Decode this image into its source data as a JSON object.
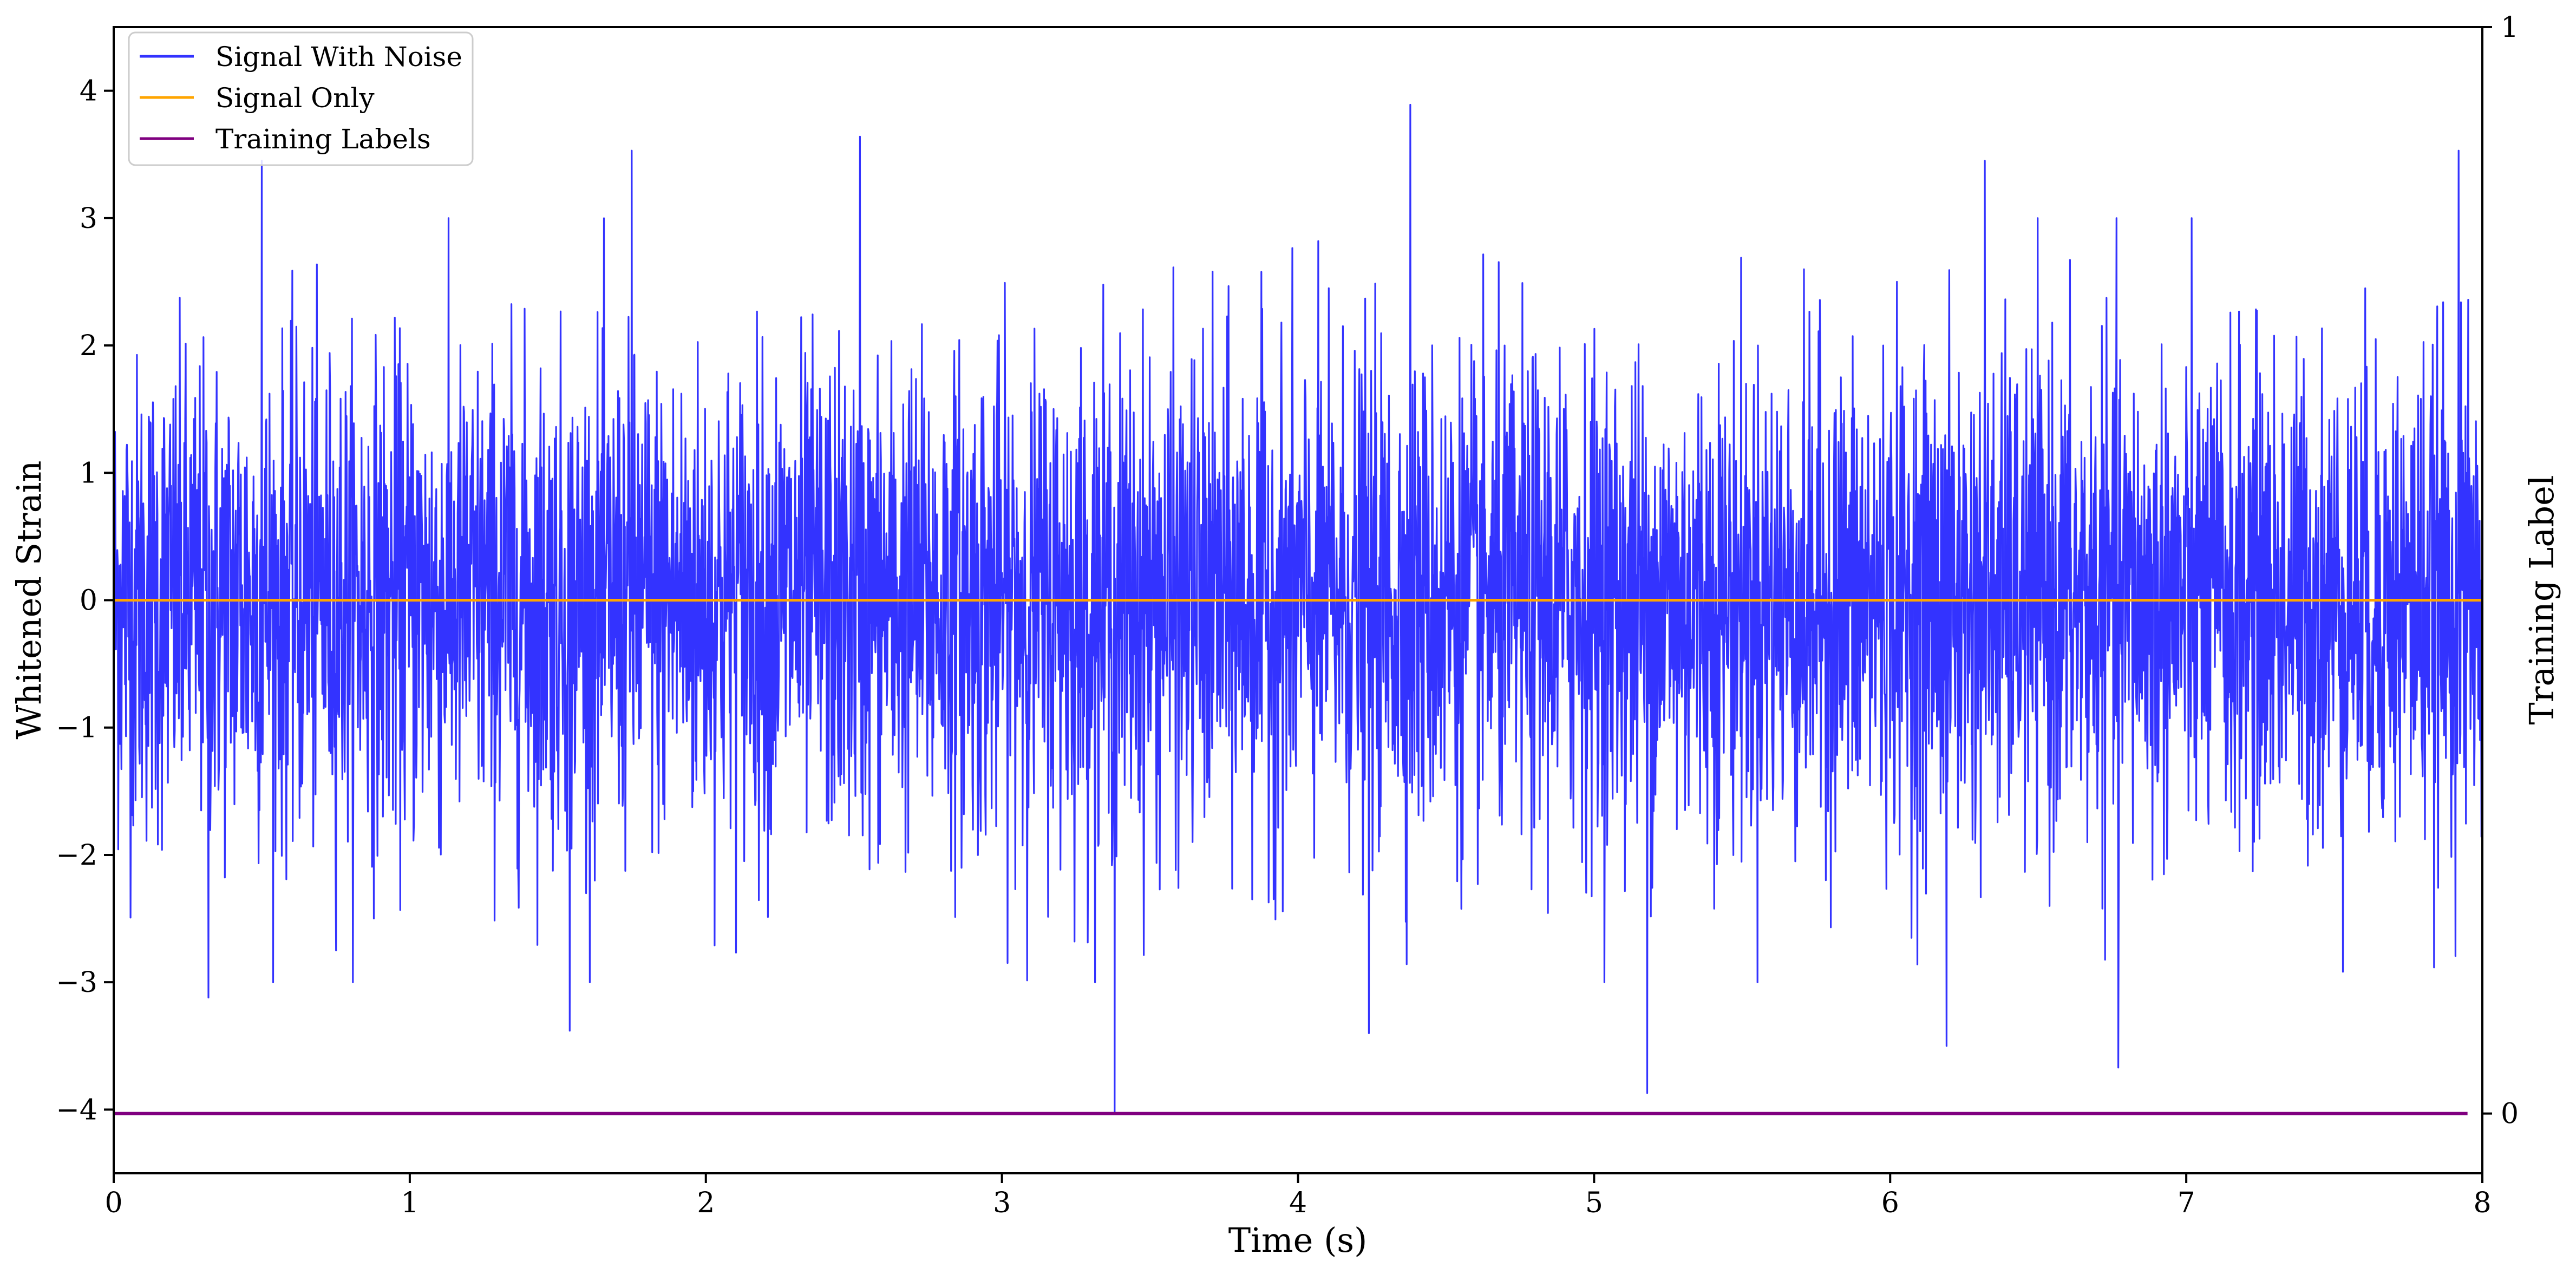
{
  "chart_data": {
    "type": "line",
    "title": "",
    "xlabel": "Time (s)",
    "ylabel": "Whitened Strain",
    "y2label": "Training Label",
    "xlim": [
      0,
      8
    ],
    "ylim": [
      -4.5,
      4.5
    ],
    "y2lim": [
      -0.055,
      1.0
    ],
    "xticks": [
      0,
      1,
      2,
      3,
      4,
      5,
      6,
      7,
      8
    ],
    "xtick_labels": [
      "0",
      "1",
      "2",
      "3",
      "4",
      "5",
      "6",
      "7",
      "8"
    ],
    "yticks": [
      4,
      3,
      2,
      1,
      0,
      -1,
      -2,
      -3,
      -4
    ],
    "ytick_labels": [
      "4",
      "3",
      "2",
      "1",
      "0",
      "−1",
      "−2",
      "−3",
      "−4"
    ],
    "y2ticks": [
      1,
      0
    ],
    "y2tick_labels": [
      "1",
      "0"
    ],
    "grid": false,
    "legend_position": "top-left",
    "series": [
      {
        "name": "Signal With Noise",
        "color": "#3333ff",
        "axis": "left",
        "description_of_values": "dense noise, approx. uniform ±1.2 band with peaks to about ±3.9",
        "band": [
          -1.2,
          1.2
        ],
        "peaks": [
          {
            "x": 0.5,
            "y": 3.45
          },
          {
            "x": 1.75,
            "y": 3.53
          },
          {
            "x": 2.52,
            "y": 3.64
          },
          {
            "x": 4.38,
            "y": 3.89
          },
          {
            "x": 6.32,
            "y": 3.45
          },
          {
            "x": 7.92,
            "y": 3.53
          },
          {
            "x": 0.32,
            "y": -3.12
          },
          {
            "x": 1.54,
            "y": -3.38
          },
          {
            "x": 3.38,
            "y": -4.02
          },
          {
            "x": 4.24,
            "y": -3.4
          },
          {
            "x": 5.18,
            "y": -3.87
          },
          {
            "x": 6.77,
            "y": -3.67
          },
          {
            "x": 6.19,
            "y": -3.5
          }
        ]
      },
      {
        "name": "Signal Only",
        "color": "#ffa500",
        "axis": "left",
        "x": [
          0,
          8
        ],
        "values": [
          0,
          0
        ]
      },
      {
        "name": "Training Labels",
        "color": "#800080",
        "axis": "right",
        "x": [
          0,
          7.95
        ],
        "values": [
          0,
          0
        ]
      }
    ]
  }
}
